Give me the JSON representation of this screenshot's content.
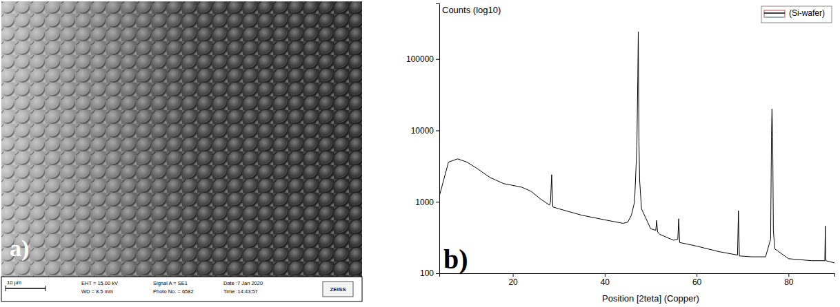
{
  "chart_data": {
    "type": "line",
    "y_label": "Counts (log10)",
    "x_label": "Position [2teta] (Copper)",
    "panel_label": "b)",
    "x": [
      4,
      6,
      8,
      10,
      12,
      15,
      18,
      20,
      22,
      24,
      26,
      28,
      28.2,
      28.45,
      28.7,
      30,
      35,
      40,
      44,
      45,
      45.8,
      46.5,
      47,
      47.2,
      47.3,
      47.4,
      47.45,
      47.6,
      48,
      50,
      51.1,
      51.3,
      51.5,
      52,
      55,
      55.9,
      56.1,
      56.3,
      60,
      65,
      68.9,
      69.1,
      69.3,
      72,
      75,
      76.1,
      76.3,
      76.4,
      76.55,
      76.7,
      77,
      80,
      85,
      87.9,
      88,
      88.1,
      90
    ],
    "series": [
      {
        "name": "(Si-wafer)",
        "color": "#000000",
        "values": [
          1200,
          3600,
          4000,
          3600,
          3000,
          2200,
          1800,
          1700,
          1600,
          1400,
          1100,
          900,
          1000,
          2400,
          850,
          800,
          650,
          560,
          500,
          520,
          650,
          1000,
          6000,
          60000,
          240000,
          20000,
          7000,
          2000,
          800,
          420,
          400,
          550,
          380,
          350,
          290,
          300,
          580,
          270,
          240,
          200,
          180,
          750,
          175,
          170,
          170,
          300,
          10000,
          20000,
          8000,
          400,
          220,
          160,
          150,
          150,
          460,
          150,
          140
        ]
      }
    ],
    "xlim": [
      4,
      90
    ],
    "ylim": [
      100,
      600000
    ],
    "xticks": [
      20,
      40,
      60,
      80
    ],
    "yticks": [
      100,
      1000,
      10000,
      100000
    ],
    "log": "y",
    "grid": false,
    "legend": "top-right"
  },
  "sem_image": {
    "panel_label": "a)",
    "scale_bar": "10 µm",
    "info": [
      [
        "EHT = 15.00 kV",
        "WD =  8.5 mm"
      ],
      [
        "Signal A = SE1",
        "Photo No. = 6582"
      ],
      [
        "Date :7 Jan 2020",
        "Time :14:43:57"
      ]
    ],
    "logo": "ZEISS"
  }
}
